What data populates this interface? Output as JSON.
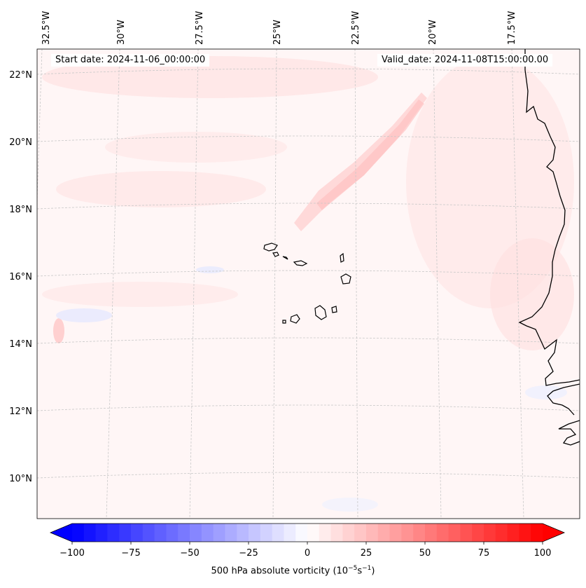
{
  "map": {
    "start_date_label": "Start date: 2024-11-06_00:00:00",
    "valid_date_label": "Valid_date: 2024-11-08T15:00:00.00",
    "lon_ticks": [
      "32.5°W",
      "30°W",
      "27.5°W",
      "25°W",
      "22.5°W",
      "20°W",
      "17.5°W"
    ],
    "lat_ticks": [
      "22°N",
      "20°N",
      "18°N",
      "16°N",
      "14°N",
      "12°N",
      "10°N"
    ],
    "field_variable": "500 hPa absolute vorticity",
    "colormap": "bwr"
  },
  "colorbar": {
    "label_text": "500 hPa absolute vorticity (10",
    "label_exp1": "−5",
    "label_mid": "s",
    "label_exp2": "−1",
    "label_end": ")",
    "ticks": [
      "−100",
      "−75",
      "−50",
      "−25",
      "0",
      "25",
      "50",
      "75",
      "100"
    ],
    "min": -100,
    "max": 100,
    "n_levels": 41,
    "color_min": "#0000ff",
    "color_mid": "#ffffff",
    "color_max": "#ff0000"
  }
}
